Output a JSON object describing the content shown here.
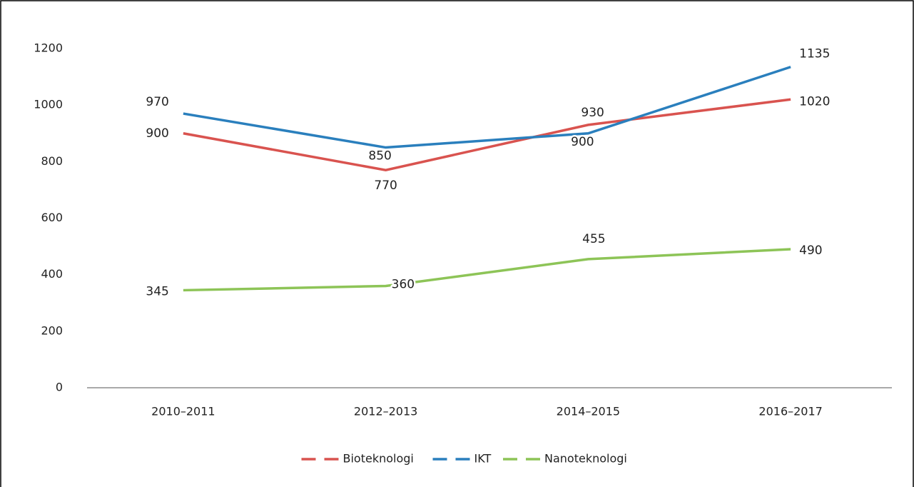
{
  "chart_data": {
    "type": "line",
    "categories": [
      "2010–2011",
      "2012–2013",
      "2014–2015",
      "2016–2017"
    ],
    "series": [
      {
        "name": "Bioteknologi",
        "color": "#d9534f",
        "values": [
          900,
          770,
          930,
          1020
        ]
      },
      {
        "name": "IKT",
        "color": "#2a7fbd",
        "values": [
          970,
          850,
          900,
          1135
        ]
      },
      {
        "name": "Nanoteknologi",
        "color": "#8dc457",
        "values": [
          345,
          360,
          455,
          490
        ]
      }
    ],
    "ylim": [
      0,
      1200
    ],
    "yticks": [
      0,
      200,
      400,
      600,
      800,
      1000,
      1200
    ],
    "grid": false,
    "legend": "bottom"
  }
}
